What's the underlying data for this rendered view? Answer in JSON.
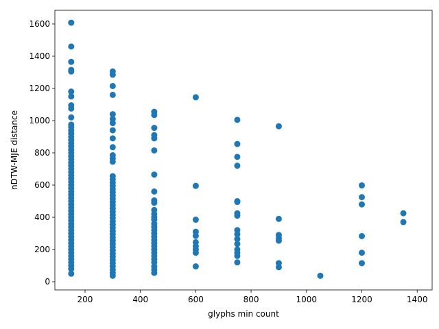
{
  "chart_data": {
    "type": "scatter",
    "x_label": "glyphs min count",
    "y_label": "nDTW-MJE distance",
    "color": "#1f77b4",
    "x": [
      150,
      150,
      150,
      150,
      150,
      150,
      150,
      150,
      150,
      150,
      150,
      150,
      150,
      150,
      150,
      150,
      150,
      150,
      150,
      150,
      150,
      150,
      150,
      150,
      150,
      150,
      150,
      150,
      150,
      150,
      150,
      150,
      150,
      150,
      150,
      150,
      150,
      150,
      150,
      150,
      150,
      150,
      150,
      150,
      150,
      150,
      150,
      150,
      150,
      150,
      150,
      150,
      150,
      150,
      150,
      150,
      150,
      300,
      300,
      300,
      300,
      300,
      300,
      300,
      300,
      300,
      300,
      300,
      300,
      300,
      300,
      300,
      300,
      300,
      300,
      300,
      300,
      300,
      300,
      300,
      300,
      300,
      300,
      300,
      300,
      300,
      300,
      300,
      300,
      300,
      300,
      300,
      300,
      300,
      300,
      300,
      300,
      300,
      300,
      300,
      300,
      300,
      450,
      450,
      450,
      450,
      450,
      450,
      450,
      450,
      450,
      450,
      450,
      450,
      450,
      450,
      450,
      450,
      450,
      450,
      450,
      450,
      450,
      450,
      450,
      450,
      450,
      450,
      450,
      450,
      450,
      450,
      600,
      600,
      600,
      600,
      600,
      600,
      600,
      600,
      600,
      600,
      750,
      750,
      750,
      750,
      750,
      750,
      750,
      750,
      750,
      750,
      750,
      750,
      750,
      750,
      750,
      750,
      900,
      900,
      900,
      900,
      900,
      900,
      900,
      1050,
      1200,
      1200,
      1200,
      1200,
      1200,
      1200,
      1350,
      1350
    ],
    "values": [
      1608,
      1460,
      1365,
      1315,
      1305,
      1180,
      1150,
      1095,
      1075,
      1020,
      975,
      960,
      940,
      920,
      900,
      880,
      860,
      840,
      820,
      800,
      780,
      760,
      740,
      720,
      700,
      680,
      660,
      640,
      620,
      600,
      580,
      560,
      540,
      520,
      500,
      480,
      460,
      440,
      420,
      400,
      380,
      360,
      340,
      320,
      300,
      280,
      260,
      240,
      220,
      200,
      180,
      160,
      140,
      120,
      100,
      80,
      50,
      1305,
      1285,
      1215,
      1160,
      1040,
      1010,
      985,
      940,
      890,
      835,
      785,
      765,
      745,
      655,
      635,
      615,
      595,
      575,
      555,
      535,
      515,
      495,
      475,
      455,
      435,
      415,
      395,
      375,
      355,
      335,
      315,
      295,
      275,
      255,
      235,
      215,
      195,
      175,
      155,
      135,
      115,
      95,
      75,
      55,
      37,
      1055,
      1035,
      955,
      910,
      890,
      815,
      665,
      560,
      505,
      490,
      445,
      420,
      400,
      385,
      360,
      340,
      320,
      300,
      280,
      260,
      240,
      220,
      200,
      180,
      160,
      140,
      120,
      95,
      75,
      55,
      1145,
      595,
      385,
      310,
      285,
      245,
      220,
      200,
      180,
      95,
      1005,
      855,
      775,
      720,
      500,
      495,
      425,
      410,
      320,
      295,
      265,
      235,
      200,
      180,
      160,
      120,
      965,
      390,
      290,
      270,
      255,
      115,
      90,
      37,
      598,
      525,
      480,
      283,
      180,
      115,
      425,
      370
    ],
    "xlim": [
      91,
      1454
    ],
    "xticks": [
      200,
      400,
      600,
      800,
      1000,
      1200,
      1400
    ],
    "ylim": [
      -51,
      1685
    ],
    "yticks": [
      0,
      200,
      400,
      600,
      800,
      1000,
      1200,
      1400,
      1600
    ]
  }
}
